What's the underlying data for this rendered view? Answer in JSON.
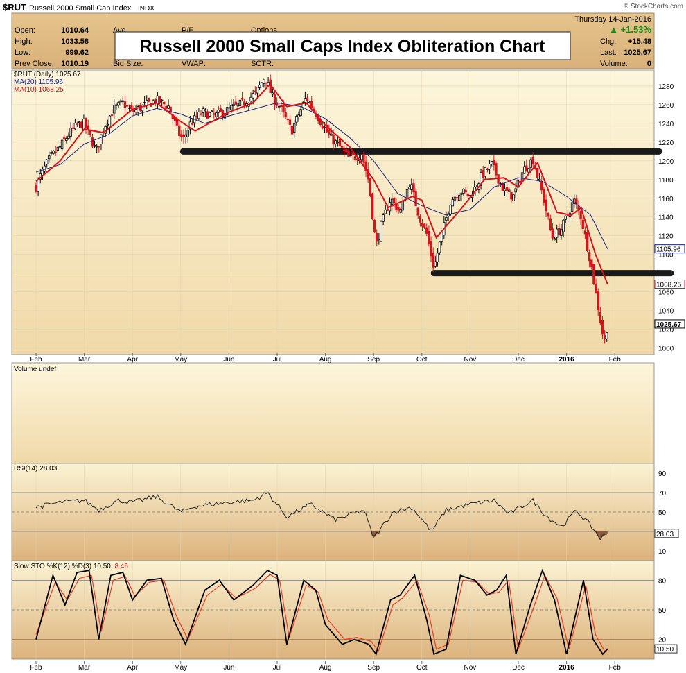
{
  "header": {
    "symbol": "$RUT",
    "name": "Russell 2000 Small Cap Index",
    "exchange": "INDX",
    "watermark": "© StockCharts.com",
    "date": "Thursday 14-Jan-2016",
    "change_pct": "▲ +1.53%",
    "open_label": "Open:",
    "open_value": "1010.64",
    "high_label": "High:",
    "high_value": "1033.58",
    "low_label": "Low:",
    "low_value": "999.62",
    "prev_label": "Prev Close:",
    "prev_value": "1010.19",
    "chg_label": "Chg:",
    "chg_value": "+15.48",
    "last_label": "Last:",
    "last_value": "1025.67",
    "volume_label": "Volume:",
    "volume_value": "0",
    "avg_label": "Avg",
    "pe_label": "P/E",
    "options_label": "Options",
    "bid_label": "Bid Size:",
    "vwap_label": "VWAP:",
    "sctr_label": "SCTR:",
    "overlay_title": "Russell 2000 Small Caps Index Obliteration Chart"
  },
  "colors": {
    "panel_top": "#fdf6d9",
    "panel_bottom": "#dcb27c",
    "price_candle": "#000000",
    "ma20": "#1a237e",
    "ma10": "#d8121b",
    "rsi_line": "#222222",
    "rsi_fill": "#8b5a3c",
    "sto_k": "#000000",
    "sto_d": "#e53a2a",
    "support_band": "#1a1a1a"
  },
  "legends": {
    "price": "$RUT (Daily) 1025.67",
    "ma20": "MA(20) 1105.96",
    "ma10": "MA(10) 1068.25",
    "volume": "Volume undef",
    "rsi": "RSI(14) 28.03",
    "sto_prefix": "Slow STO %K(12) %D(3) 10.50,",
    "sto_d_value": "8.46"
  },
  "chart_data": [
    {
      "type": "candlestick",
      "title": "$RUT (Daily) 1025.67",
      "x_months": [
        "Feb",
        "Mar",
        "Apr",
        "May",
        "Jun",
        "Jul",
        "Aug",
        "Sep",
        "Oct",
        "Nov",
        "Dec",
        "2016",
        "Feb"
      ],
      "y_ticks": [
        1000,
        1020,
        1040,
        1060,
        1080,
        1100,
        1120,
        1140,
        1160,
        1180,
        1200,
        1220,
        1240,
        1260,
        1280
      ],
      "ylim": [
        993,
        1297
      ],
      "last_value_labels": [
        {
          "name": "MA(20)",
          "value": "1105.96"
        },
        {
          "name": "MA(10)",
          "value": "1068.25"
        },
        {
          "name": "$RUT",
          "value": "1025.67"
        }
      ],
      "close_path": [
        {
          "x": 0.0,
          "y": 1172
        },
        {
          "x": 0.1,
          "y": 1185
        },
        {
          "x": 0.3,
          "y": 1204
        },
        {
          "x": 0.5,
          "y": 1215
        },
        {
          "x": 0.7,
          "y": 1230
        },
        {
          "x": 0.85,
          "y": 1238
        },
        {
          "x": 1.0,
          "y": 1240
        },
        {
          "x": 1.1,
          "y": 1228
        },
        {
          "x": 1.25,
          "y": 1210
        },
        {
          "x": 1.4,
          "y": 1235
        },
        {
          "x": 1.6,
          "y": 1255
        },
        {
          "x": 1.8,
          "y": 1262
        },
        {
          "x": 2.0,
          "y": 1252
        },
        {
          "x": 2.2,
          "y": 1258
        },
        {
          "x": 2.5,
          "y": 1265
        },
        {
          "x": 2.75,
          "y": 1258
        },
        {
          "x": 2.95,
          "y": 1230
        },
        {
          "x": 3.05,
          "y": 1222
        },
        {
          "x": 3.2,
          "y": 1240
        },
        {
          "x": 3.45,
          "y": 1252
        },
        {
          "x": 3.7,
          "y": 1248
        },
        {
          "x": 4.0,
          "y": 1255
        },
        {
          "x": 4.3,
          "y": 1262
        },
        {
          "x": 4.55,
          "y": 1272
        },
        {
          "x": 4.75,
          "y": 1290
        },
        {
          "x": 4.9,
          "y": 1268
        },
        {
          "x": 5.05,
          "y": 1258
        },
        {
          "x": 5.3,
          "y": 1232
        },
        {
          "x": 5.45,
          "y": 1250
        },
        {
          "x": 5.6,
          "y": 1268
        },
        {
          "x": 5.75,
          "y": 1255
        },
        {
          "x": 5.95,
          "y": 1238
        },
        {
          "x": 6.1,
          "y": 1225
        },
        {
          "x": 6.3,
          "y": 1215
        },
        {
          "x": 6.5,
          "y": 1202
        },
        {
          "x": 6.75,
          "y": 1208
        },
        {
          "x": 6.9,
          "y": 1178
        },
        {
          "x": 7.05,
          "y": 1108
        },
        {
          "x": 7.15,
          "y": 1130
        },
        {
          "x": 7.35,
          "y": 1160
        },
        {
          "x": 7.55,
          "y": 1145
        },
        {
          "x": 7.75,
          "y": 1178
        },
        {
          "x": 7.95,
          "y": 1140
        },
        {
          "x": 8.1,
          "y": 1122
        },
        {
          "x": 8.25,
          "y": 1085
        },
        {
          "x": 8.4,
          "y": 1118
        },
        {
          "x": 8.6,
          "y": 1158
        },
        {
          "x": 8.8,
          "y": 1168
        },
        {
          "x": 9.0,
          "y": 1162
        },
        {
          "x": 9.25,
          "y": 1185
        },
        {
          "x": 9.45,
          "y": 1196
        },
        {
          "x": 9.7,
          "y": 1168
        },
        {
          "x": 9.9,
          "y": 1162
        },
        {
          "x": 10.1,
          "y": 1190
        },
        {
          "x": 10.3,
          "y": 1202
        },
        {
          "x": 10.5,
          "y": 1165
        },
        {
          "x": 10.7,
          "y": 1118
        },
        {
          "x": 10.9,
          "y": 1128
        },
        {
          "x": 11.15,
          "y": 1158
        },
        {
          "x": 11.3,
          "y": 1140
        },
        {
          "x": 11.5,
          "y": 1092
        },
        {
          "x": 11.65,
          "y": 1045
        },
        {
          "x": 11.78,
          "y": 1005
        },
        {
          "x": 11.85,
          "y": 1025.67
        }
      ],
      "ma20_path": [
        {
          "x": 0.0,
          "y": 1188
        },
        {
          "x": 0.5,
          "y": 1196
        },
        {
          "x": 1.0,
          "y": 1218
        },
        {
          "x": 1.5,
          "y": 1228
        },
        {
          "x": 2.0,
          "y": 1248
        },
        {
          "x": 2.5,
          "y": 1256
        },
        {
          "x": 3.0,
          "y": 1250
        },
        {
          "x": 3.5,
          "y": 1240
        },
        {
          "x": 4.0,
          "y": 1248
        },
        {
          "x": 4.5,
          "y": 1255
        },
        {
          "x": 5.0,
          "y": 1262
        },
        {
          "x": 5.5,
          "y": 1258
        },
        {
          "x": 6.0,
          "y": 1245
        },
        {
          "x": 6.5,
          "y": 1225
        },
        {
          "x": 7.0,
          "y": 1200
        },
        {
          "x": 7.5,
          "y": 1165
        },
        {
          "x": 8.0,
          "y": 1152
        },
        {
          "x": 8.5,
          "y": 1142
        },
        {
          "x": 9.0,
          "y": 1148
        },
        {
          "x": 9.5,
          "y": 1172
        },
        {
          "x": 10.0,
          "y": 1182
        },
        {
          "x": 10.5,
          "y": 1178
        },
        {
          "x": 11.0,
          "y": 1162
        },
        {
          "x": 11.5,
          "y": 1142
        },
        {
          "x": 11.85,
          "y": 1105.96
        }
      ],
      "ma10_path": [
        {
          "x": 0.0,
          "y": 1178
        },
        {
          "x": 0.5,
          "y": 1200
        },
        {
          "x": 1.0,
          "y": 1234
        },
        {
          "x": 1.4,
          "y": 1230
        },
        {
          "x": 2.0,
          "y": 1255
        },
        {
          "x": 2.5,
          "y": 1262
        },
        {
          "x": 3.0,
          "y": 1242
        },
        {
          "x": 3.3,
          "y": 1232
        },
        {
          "x": 4.0,
          "y": 1252
        },
        {
          "x": 4.5,
          "y": 1262
        },
        {
          "x": 4.85,
          "y": 1282
        },
        {
          "x": 5.2,
          "y": 1258
        },
        {
          "x": 5.6,
          "y": 1262
        },
        {
          "x": 6.0,
          "y": 1238
        },
        {
          "x": 6.5,
          "y": 1215
        },
        {
          "x": 7.0,
          "y": 1180
        },
        {
          "x": 7.3,
          "y": 1150
        },
        {
          "x": 7.8,
          "y": 1162
        },
        {
          "x": 8.0,
          "y": 1158
        },
        {
          "x": 8.3,
          "y": 1118
        },
        {
          "x": 8.8,
          "y": 1148
        },
        {
          "x": 9.3,
          "y": 1180
        },
        {
          "x": 9.7,
          "y": 1182
        },
        {
          "x": 10.0,
          "y": 1172
        },
        {
          "x": 10.4,
          "y": 1198
        },
        {
          "x": 10.8,
          "y": 1145
        },
        {
          "x": 11.1,
          "y": 1142
        },
        {
          "x": 11.3,
          "y": 1150
        },
        {
          "x": 11.6,
          "y": 1100
        },
        {
          "x": 11.85,
          "y": 1068.25
        }
      ],
      "support_lines": [
        {
          "value": 1210,
          "x_start": 3.05,
          "x_end": 12.92
        },
        {
          "value": 1080,
          "x_start": 8.25,
          "x_end": 13.16
        }
      ]
    },
    {
      "type": "bar",
      "title": "Volume undef",
      "values": []
    },
    {
      "type": "line",
      "title": "RSI(14) 28.03",
      "y_ticks": [
        10,
        30,
        50,
        70,
        90
      ],
      "ylim": [
        0,
        100
      ],
      "reference_lines": [
        70,
        50,
        30
      ],
      "last_value": "28.03",
      "path": [
        {
          "x": 0.0,
          "y": 55
        },
        {
          "x": 0.5,
          "y": 60
        },
        {
          "x": 1.0,
          "y": 62
        },
        {
          "x": 1.3,
          "y": 52
        },
        {
          "x": 1.7,
          "y": 62
        },
        {
          "x": 2.0,
          "y": 60
        },
        {
          "x": 2.5,
          "y": 66
        },
        {
          "x": 3.0,
          "y": 50
        },
        {
          "x": 3.3,
          "y": 56
        },
        {
          "x": 4.0,
          "y": 60
        },
        {
          "x": 4.5,
          "y": 62
        },
        {
          "x": 4.8,
          "y": 70
        },
        {
          "x": 5.2,
          "y": 45
        },
        {
          "x": 5.7,
          "y": 58
        },
        {
          "x": 6.2,
          "y": 42
        },
        {
          "x": 6.8,
          "y": 52
        },
        {
          "x": 7.0,
          "y": 23
        },
        {
          "x": 7.4,
          "y": 50
        },
        {
          "x": 7.8,
          "y": 55
        },
        {
          "x": 8.2,
          "y": 30
        },
        {
          "x": 8.5,
          "y": 52
        },
        {
          "x": 9.0,
          "y": 58
        },
        {
          "x": 9.5,
          "y": 62
        },
        {
          "x": 9.8,
          "y": 48
        },
        {
          "x": 10.3,
          "y": 62
        },
        {
          "x": 10.6,
          "y": 45
        },
        {
          "x": 10.9,
          "y": 35
        },
        {
          "x": 11.2,
          "y": 52
        },
        {
          "x": 11.5,
          "y": 36
        },
        {
          "x": 11.7,
          "y": 23
        },
        {
          "x": 11.85,
          "y": 28.03
        }
      ]
    },
    {
      "type": "line",
      "title": "Slow STO %K(12) %D(3) 10.50, 8.46",
      "y_ticks": [
        20,
        50,
        80
      ],
      "ylim": [
        0,
        100
      ],
      "reference_lines": [
        80,
        50,
        20
      ],
      "last_value": "10.50",
      "k_path": [
        {
          "x": 0.0,
          "y": 20
        },
        {
          "x": 0.35,
          "y": 85
        },
        {
          "x": 0.6,
          "y": 55
        },
        {
          "x": 0.85,
          "y": 88
        },
        {
          "x": 1.1,
          "y": 90
        },
        {
          "x": 1.3,
          "y": 20
        },
        {
          "x": 1.55,
          "y": 85
        },
        {
          "x": 1.8,
          "y": 88
        },
        {
          "x": 2.0,
          "y": 60
        },
        {
          "x": 2.3,
          "y": 80
        },
        {
          "x": 2.6,
          "y": 82
        },
        {
          "x": 2.85,
          "y": 40
        },
        {
          "x": 3.1,
          "y": 15
        },
        {
          "x": 3.5,
          "y": 70
        },
        {
          "x": 3.8,
          "y": 80
        },
        {
          "x": 4.1,
          "y": 60
        },
        {
          "x": 4.5,
          "y": 75
        },
        {
          "x": 4.8,
          "y": 90
        },
        {
          "x": 5.0,
          "y": 85
        },
        {
          "x": 5.2,
          "y": 15
        },
        {
          "x": 5.55,
          "y": 80
        },
        {
          "x": 5.8,
          "y": 70
        },
        {
          "x": 6.0,
          "y": 35
        },
        {
          "x": 6.35,
          "y": 15
        },
        {
          "x": 6.6,
          "y": 20
        },
        {
          "x": 6.9,
          "y": 15
        },
        {
          "x": 7.05,
          "y": 5
        },
        {
          "x": 7.35,
          "y": 60
        },
        {
          "x": 7.55,
          "y": 65
        },
        {
          "x": 7.85,
          "y": 85
        },
        {
          "x": 8.1,
          "y": 40
        },
        {
          "x": 8.25,
          "y": 5
        },
        {
          "x": 8.5,
          "y": 10
        },
        {
          "x": 8.8,
          "y": 85
        },
        {
          "x": 9.1,
          "y": 80
        },
        {
          "x": 9.35,
          "y": 65
        },
        {
          "x": 9.55,
          "y": 70
        },
        {
          "x": 9.75,
          "y": 85
        },
        {
          "x": 9.95,
          "y": 5
        },
        {
          "x": 10.25,
          "y": 55
        },
        {
          "x": 10.5,
          "y": 90
        },
        {
          "x": 10.75,
          "y": 60
        },
        {
          "x": 11.0,
          "y": 5
        },
        {
          "x": 11.35,
          "y": 80
        },
        {
          "x": 11.55,
          "y": 20
        },
        {
          "x": 11.75,
          "y": 5
        },
        {
          "x": 11.85,
          "y": 10.5
        }
      ],
      "d_path": [
        {
          "x": 0.0,
          "y": 25
        },
        {
          "x": 0.4,
          "y": 78
        },
        {
          "x": 0.65,
          "y": 60
        },
        {
          "x": 0.9,
          "y": 82
        },
        {
          "x": 1.15,
          "y": 85
        },
        {
          "x": 1.35,
          "y": 28
        },
        {
          "x": 1.6,
          "y": 80
        },
        {
          "x": 1.85,
          "y": 84
        },
        {
          "x": 2.05,
          "y": 64
        },
        {
          "x": 2.35,
          "y": 78
        },
        {
          "x": 2.65,
          "y": 80
        },
        {
          "x": 2.9,
          "y": 45
        },
        {
          "x": 3.15,
          "y": 20
        },
        {
          "x": 3.55,
          "y": 65
        },
        {
          "x": 3.85,
          "y": 76
        },
        {
          "x": 4.15,
          "y": 62
        },
        {
          "x": 4.55,
          "y": 72
        },
        {
          "x": 4.85,
          "y": 86
        },
        {
          "x": 5.05,
          "y": 80
        },
        {
          "x": 5.25,
          "y": 22
        },
        {
          "x": 5.6,
          "y": 75
        },
        {
          "x": 5.85,
          "y": 68
        },
        {
          "x": 6.05,
          "y": 40
        },
        {
          "x": 6.4,
          "y": 20
        },
        {
          "x": 6.65,
          "y": 22
        },
        {
          "x": 6.95,
          "y": 18
        },
        {
          "x": 7.1,
          "y": 8
        },
        {
          "x": 7.4,
          "y": 55
        },
        {
          "x": 7.6,
          "y": 62
        },
        {
          "x": 7.9,
          "y": 80
        },
        {
          "x": 8.15,
          "y": 45
        },
        {
          "x": 8.3,
          "y": 10
        },
        {
          "x": 8.55,
          "y": 15
        },
        {
          "x": 8.85,
          "y": 80
        },
        {
          "x": 9.15,
          "y": 78
        },
        {
          "x": 9.4,
          "y": 66
        },
        {
          "x": 9.6,
          "y": 68
        },
        {
          "x": 9.8,
          "y": 80
        },
        {
          "x": 10.0,
          "y": 10
        },
        {
          "x": 10.3,
          "y": 50
        },
        {
          "x": 10.55,
          "y": 85
        },
        {
          "x": 10.8,
          "y": 62
        },
        {
          "x": 11.05,
          "y": 10
        },
        {
          "x": 11.4,
          "y": 75
        },
        {
          "x": 11.6,
          "y": 25
        },
        {
          "x": 11.8,
          "y": 7
        },
        {
          "x": 11.85,
          "y": 8.46
        }
      ]
    }
  ]
}
